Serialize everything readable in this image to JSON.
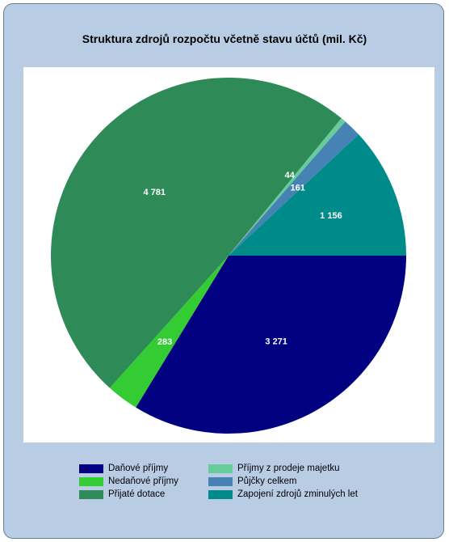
{
  "chart_data": {
    "type": "pie",
    "title": "Struktura zdrojů rozpočtu včetně stavu účtů  (mil. Kč)",
    "slices": [
      {
        "name": "Daňové příjmy",
        "value": 3271,
        "label": "3 271",
        "color": "#000080"
      },
      {
        "name": "Nedaňové příjmy",
        "value": 283,
        "label": "283",
        "color": "#33cc33"
      },
      {
        "name": "Přijaté dotace",
        "value": 4781,
        "label": "4 781",
        "color": "#2e8b57"
      },
      {
        "name": "Příjmy z prodeje majetku",
        "value": 44,
        "label": "44",
        "color": "#66cc99"
      },
      {
        "name": "Půjčky celkem",
        "value": 161,
        "label": "161",
        "color": "#4682b4"
      },
      {
        "name": "Zapojení zdrojů z minulých let",
        "value": 1156,
        "label": "1 156",
        "color": "#008b8b"
      }
    ],
    "legend": [
      {
        "label": "Daňové příjmy",
        "color": "#000080"
      },
      {
        "label": "Nedaňové příjmy",
        "color": "#33cc33"
      },
      {
        "label": "Přijaté dotace",
        "color": "#2e8b57"
      },
      {
        "label": "Příjmy z prodeje majetku",
        "color": "#66cc99"
      },
      {
        "label": "Půjčky celkem",
        "color": "#4682b4"
      },
      {
        "label": "Zapojení zdrojů zminulých let",
        "color": "#008b8b"
      }
    ],
    "legend_position": "bottom"
  },
  "colors": {
    "frame_background": "#b8cce4",
    "plot_background": "#ffffff"
  }
}
